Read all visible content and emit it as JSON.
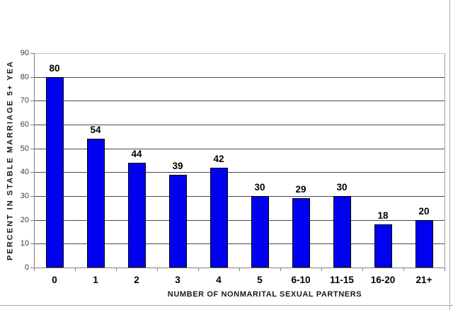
{
  "chart_data": {
    "type": "bar",
    "title": "",
    "categories": [
      "0",
      "1",
      "2",
      "3",
      "4",
      "5",
      "6-10",
      "11-15",
      "16-20",
      "21+"
    ],
    "values": [
      80,
      54,
      44,
      39,
      42,
      30,
      29,
      30,
      18,
      20
    ],
    "xlabel": "NUMBER OF NONMARITAL SEXUAL PARTNERS",
    "ylabel": "PERCENT IN STABLE MARRIAGE 5+ YEA",
    "ylim": [
      0,
      90
    ],
    "yticks": [
      0,
      10,
      20,
      30,
      40,
      50,
      60,
      70,
      80,
      90
    ],
    "grid": true,
    "legend": "none",
    "value_labels_shown": true,
    "colors": {
      "bar_fill": "#0101f2",
      "bar_border": "#000000",
      "gridline": "#4a4a4a",
      "axis_line": "#7f7f7f",
      "background": "#ffffff",
      "label_text": "#000000",
      "tick_text": "#3d3d3d"
    }
  }
}
